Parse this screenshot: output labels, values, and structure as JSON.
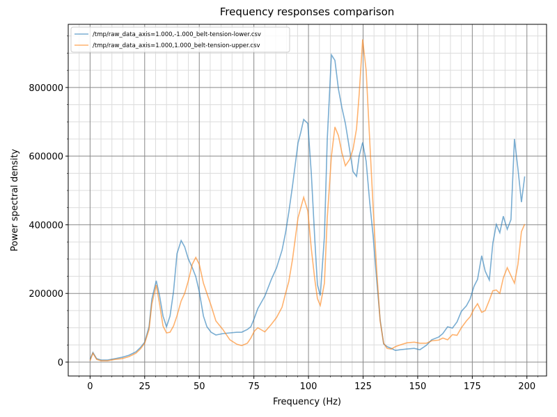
{
  "chart_data": {
    "type": "line",
    "title": "Frequency responses comparison",
    "xlabel": "Frequency (Hz)",
    "ylabel": "Power spectral density",
    "x": [
      0,
      1.3,
      3,
      5,
      8,
      11.5,
      14.6,
      17.8,
      21,
      23,
      25,
      27,
      28.3,
      30.3,
      31.8,
      33.4,
      35,
      36.6,
      38.2,
      39.8,
      41.7,
      43.3,
      44.9,
      46.8,
      48.4,
      50,
      51.9,
      53.5,
      55.4,
      57.6,
      60.8,
      64,
      67.2,
      69.4,
      72,
      73.6,
      75.2,
      76.8,
      80,
      83,
      85.4,
      87.9,
      89.5,
      91,
      92.7,
      95.2,
      96.5,
      97.8,
      99.7,
      101.3,
      102.9,
      104.1,
      105.4,
      107.3,
      108.6,
      110.5,
      112.1,
      113.7,
      115.3,
      116.9,
      118.8,
      120.4,
      122,
      123.2,
      124.8,
      126.4,
      128,
      129.6,
      131.2,
      132.8,
      134.4,
      136,
      137.9,
      139.8,
      142,
      145,
      148.4,
      151,
      154,
      156.4,
      159.6,
      161.5,
      163.7,
      165.9,
      168,
      170,
      172.3,
      174,
      175.8,
      177.4,
      179.3,
      180.9,
      182.8,
      184.4,
      186,
      187.6,
      189.2,
      191,
      192.7,
      194.3,
      195.9,
      197.5,
      199
    ],
    "series": [
      {
        "name": "/tmp/raw_data_axis=1.000,-1.000_belt-tension-lower.csv",
        "color": "#1f77b4",
        "values": [
          8000,
          28000,
          10000,
          6000,
          6000,
          10000,
          14000,
          20000,
          30000,
          42000,
          58000,
          103000,
          184000,
          237000,
          194000,
          134000,
          103000,
          134000,
          205000,
          316000,
          354000,
          336000,
          302000,
          275000,
          249000,
          205000,
          134000,
          103000,
          87000,
          79000,
          83000,
          85000,
          87000,
          87000,
          95000,
          103000,
          128000,
          156000,
          192000,
          241000,
          275000,
          326000,
          377000,
          437000,
          514000,
          638000,
          670000,
          707000,
          695000,
          549000,
          356000,
          225000,
          194000,
          367000,
          650000,
          895000,
          879000,
          796000,
          741000,
          695000,
          620000,
          555000,
          541000,
          600000,
          640000,
          585000,
          468000,
          367000,
          241000,
          124000,
          53000,
          45000,
          40000,
          34000,
          36000,
          38000,
          40000,
          36000,
          49000,
          65000,
          73000,
          83000,
          103000,
          99000,
          117000,
          148000,
          164000,
          184000,
          221000,
          241000,
          310000,
          265000,
          239000,
          346000,
          401000,
          377000,
          425000,
          387000,
          415000,
          650000,
          563000,
          466000,
          541000
        ]
      },
      {
        "name": "/tmp/raw_data_axis=1.000,1.000_belt-tension-upper.csv",
        "color": "#ff7f0e",
        "values": [
          4000,
          26000,
          8000,
          4000,
          4000,
          8000,
          10000,
          16000,
          26000,
          38000,
          55000,
          95000,
          170000,
          225000,
          170000,
          105000,
          85000,
          87000,
          105000,
          135000,
          178000,
          200000,
          235000,
          285000,
          305000,
          285000,
          230000,
          200000,
          165000,
          120000,
          95000,
          65000,
          52000,
          48000,
          55000,
          70000,
          90000,
          100000,
          88000,
          110000,
          130000,
          160000,
          200000,
          235000,
          300000,
          420000,
          450000,
          480000,
          440000,
          330000,
          240000,
          185000,
          165000,
          230000,
          420000,
          600000,
          685000,
          660000,
          610000,
          572000,
          590000,
          620000,
          680000,
          780000,
          940000,
          850000,
          650000,
          450000,
          270000,
          120000,
          55000,
          40000,
          38000,
          45000,
          50000,
          56000,
          58000,
          55000,
          55000,
          62000,
          64000,
          70000,
          65000,
          80000,
          78000,
          100000,
          120000,
          132000,
          155000,
          170000,
          145000,
          150000,
          180000,
          208000,
          210000,
          200000,
          245000,
          275000,
          252000,
          230000,
          285000,
          380000,
          402000
        ]
      }
    ],
    "alpha": 0.6,
    "xlim": [
      -10,
      209
    ],
    "ylim": [
      -40500,
      984000
    ],
    "xticks": [
      0,
      25,
      50,
      75,
      100,
      125,
      150,
      175,
      200
    ],
    "yticks": [
      0,
      200000,
      400000,
      600000,
      800000
    ],
    "xminorticks": [
      -5,
      5,
      10,
      15,
      20,
      30,
      35,
      40,
      45,
      55,
      60,
      65,
      70,
      80,
      85,
      90,
      95,
      105,
      110,
      115,
      120,
      130,
      135,
      140,
      145,
      155,
      160,
      165,
      170,
      180,
      185,
      190,
      195,
      205
    ],
    "yminorticks": [
      50000,
      100000,
      150000,
      250000,
      300000,
      350000,
      450000,
      500000,
      550000,
      650000,
      700000,
      750000,
      850000,
      900000,
      950000
    ],
    "grid": true,
    "legend": "upper left"
  }
}
